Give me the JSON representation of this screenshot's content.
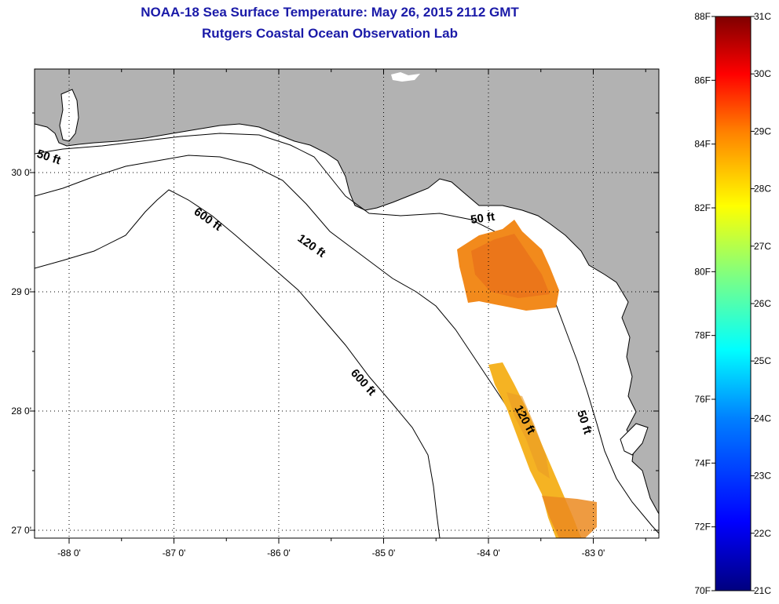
{
  "header": {
    "title": "NOAA-18 Sea Surface Temperature:  May 26, 2015 2112 GMT",
    "subtitle": "Rutgers Coastal Ocean Observation Lab"
  },
  "map": {
    "lon_labels": [
      "-88 0'",
      "-87 0'",
      "-86 0'",
      "-85 0'",
      "-84 0'",
      "-83 0'"
    ],
    "lat_labels": [
      "30 0'",
      "29 0'",
      "28 0'",
      "27 0'"
    ],
    "isobath_labels": [
      {
        "id": "50a",
        "text": "50 ft"
      },
      {
        "id": "600a",
        "text": "600 ft"
      },
      {
        "id": "120a",
        "text": "120 ft"
      },
      {
        "id": "50b",
        "text": "50 ft"
      },
      {
        "id": "600b",
        "text": "600 ft"
      },
      {
        "id": "120b",
        "text": "120 ft"
      },
      {
        "id": "50c",
        "text": "50 ft"
      }
    ],
    "colors": {
      "land": "#b2b2b2",
      "water": "#ffffff",
      "grid": "#000000"
    }
  },
  "colorbar": {
    "f_labels": [
      "88F",
      "86F",
      "84F",
      "82F",
      "80F",
      "78F",
      "76F",
      "74F",
      "72F",
      "70F"
    ],
    "c_labels": [
      "31C",
      "30C",
      "29C",
      "28C",
      "27C",
      "26C",
      "25C",
      "24C",
      "23C",
      "22C",
      "21C"
    ],
    "f_range": [
      70,
      88
    ],
    "c_range": [
      21,
      31
    ],
    "stops": [
      "#000080",
      "#0000ff",
      "#0080ff",
      "#00ffff",
      "#80ff80",
      "#ffff00",
      "#ff8000",
      "#ff0000",
      "#800000"
    ]
  }
}
